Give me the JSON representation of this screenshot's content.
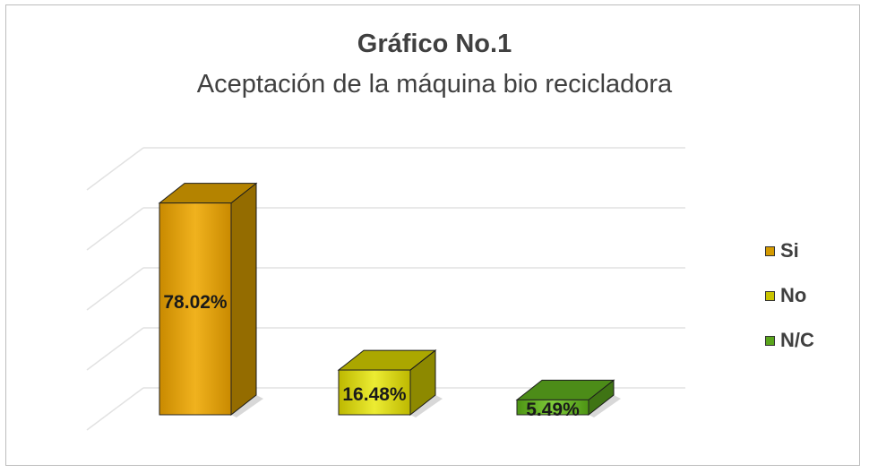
{
  "chart_data": {
    "type": "bar",
    "title": "Gráfico No.1",
    "subtitle": "Aceptación de la máquina bio recicladora",
    "categories": [
      "Si",
      "No",
      "N/C"
    ],
    "values": [
      78.02,
      16.48,
      5.49
    ],
    "labels": [
      "78.02%",
      "16.48%",
      "5.49%"
    ],
    "colors": [
      "#d49a00",
      "#c9c400",
      "#5aa51c"
    ],
    "ylim": [
      0,
      100
    ],
    "grid": true,
    "legend": "right"
  }
}
